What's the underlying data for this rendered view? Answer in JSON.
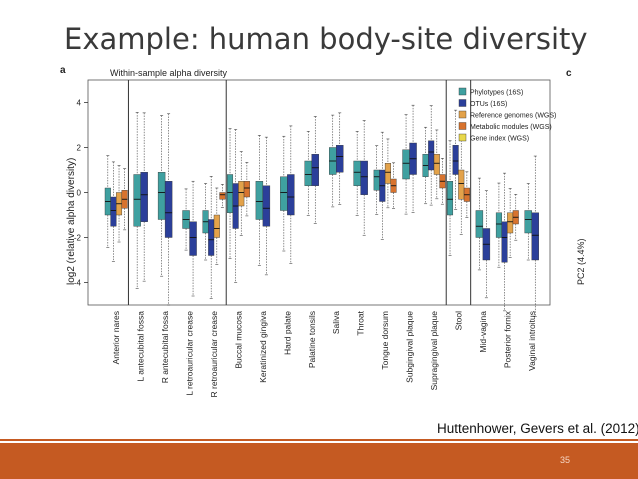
{
  "slide": {
    "title": "Example: human body-site diversity",
    "citation": "Huttenhower, Gevers et al. (2012)",
    "page_number": "35"
  },
  "chart_data": {
    "type": "box",
    "panel_label": "a",
    "right_panel_label": "c",
    "right_axis_label": "PC2 (4.4%)",
    "title": "Within-sample alpha diversity",
    "ylabel": "log2 (relative alpha diversity)",
    "ylim": [
      -5,
      5
    ],
    "yticks": [
      4,
      2,
      0,
      -2,
      -4
    ],
    "categories": [
      "Anterior nares",
      "L antecubital fossa",
      "R antecubital fossa",
      "L retroauricular crease",
      "R retroauricular crease",
      "Buccal mucosa",
      "Keratinized gingiva",
      "Hard palate",
      "Palatine tonsils",
      "Saliva",
      "Throat",
      "Tongue dorsum",
      "Subgingival plaque",
      "Supragingival plaque",
      "Stool",
      "Mid-vagina",
      "Posterior fornix",
      "Vaginal introitus"
    ],
    "group_separators_after": [
      0,
      4,
      13,
      14
    ],
    "legend": {
      "placement": "top-right",
      "entries": [
        {
          "name": "Phylotypes (16S)",
          "color": "#3fa0a0"
        },
        {
          "name": "OTUs (16S)",
          "color": "#2b3f9a"
        },
        {
          "name": "Reference genomes (WGS)",
          "color": "#e3a24a"
        },
        {
          "name": "Metabolic modules (WGS)",
          "color": "#d8732e"
        },
        {
          "name": "Gene index (WGS)",
          "color": "#e8d84a"
        }
      ]
    },
    "series": [
      {
        "name": "Phylotypes (16S)",
        "median": [
          -0.4,
          -0.3,
          0.0,
          -1.2,
          -1.3,
          0.0,
          -0.4,
          0.0,
          0.8,
          1.4,
          0.9,
          0.7,
          1.3,
          1.2,
          -0.3,
          -1.5,
          -1.4,
          -1.2
        ]
      },
      {
        "name": "OTUs (16S)",
        "median": [
          -0.8,
          -0.1,
          -0.9,
          -2.0,
          -2.1,
          -0.6,
          -0.7,
          -0.2,
          1.1,
          1.6,
          0.7,
          0.3,
          1.5,
          1.8,
          1.4,
          -2.3,
          -2.0,
          -1.9
        ]
      },
      {
        "name": "Reference genomes (WGS)",
        "median": [
          -0.5,
          null,
          null,
          null,
          -1.6,
          0.0,
          null,
          null,
          null,
          null,
          null,
          0.9,
          null,
          1.3,
          0.4,
          null,
          -1.3,
          null
        ]
      },
      {
        "name": "Metabolic modules (WGS)",
        "median": [
          -0.3,
          null,
          null,
          null,
          -0.1,
          0.2,
          null,
          null,
          null,
          null,
          null,
          0.3,
          null,
          0.5,
          -0.1,
          null,
          -1.1,
          null
        ]
      }
    ],
    "iqr": [
      [
        [
          -1.0,
          0.2
        ],
        [
          -1.5,
          0.8
        ],
        [
          -1.2,
          0.9
        ],
        [
          -1.6,
          -0.8
        ],
        [
          -1.8,
          -0.8
        ],
        [
          -0.9,
          0.8
        ],
        [
          -1.2,
          0.5
        ],
        [
          -0.8,
          0.7
        ],
        [
          0.3,
          1.4
        ],
        [
          0.8,
          2.0
        ],
        [
          0.3,
          1.4
        ],
        [
          0.1,
          1.0
        ],
        [
          0.6,
          1.9
        ],
        [
          0.7,
          1.7
        ],
        [
          -1.0,
          0.5
        ],
        [
          -2.0,
          -0.8
        ],
        [
          -2.0,
          -0.9
        ],
        [
          -1.8,
          -0.8
        ]
      ],
      [
        [
          -1.5,
          -0.2
        ],
        [
          -1.3,
          0.9
        ],
        [
          -2.0,
          0.5
        ],
        [
          -2.8,
          -1.3
        ],
        [
          -2.8,
          -1.2
        ],
        [
          -1.6,
          0.4
        ],
        [
          -1.5,
          0.3
        ],
        [
          -1.0,
          0.8
        ],
        [
          0.3,
          1.7
        ],
        [
          0.9,
          2.1
        ],
        [
          -0.1,
          1.4
        ],
        [
          -0.4,
          1.0
        ],
        [
          0.8,
          2.2
        ],
        [
          1.0,
          2.3
        ],
        [
          0.8,
          2.1
        ],
        [
          -3.0,
          -1.6
        ],
        [
          -3.1,
          -1.3
        ],
        [
          -3.0,
          -0.9
        ]
      ],
      [
        [
          -1.0,
          0.0
        ],
        null,
        null,
        null,
        [
          -2.0,
          -1.0
        ],
        [
          -0.6,
          0.5
        ],
        null,
        null,
        null,
        null,
        null,
        [
          0.4,
          1.3
        ],
        null,
        [
          0.8,
          1.7
        ],
        [
          -0.3,
          1.0
        ],
        null,
        [
          -1.8,
          -0.9
        ],
        null
      ],
      [
        [
          -0.7,
          0.1
        ],
        null,
        null,
        null,
        [
          -0.3,
          0.0
        ],
        [
          -0.2,
          0.5
        ],
        null,
        null,
        null,
        null,
        null,
        [
          0.0,
          0.6
        ],
        null,
        [
          0.2,
          0.8
        ],
        [
          -0.4,
          0.2
        ],
        null,
        [
          -1.4,
          -0.8
        ],
        null
      ]
    ]
  }
}
